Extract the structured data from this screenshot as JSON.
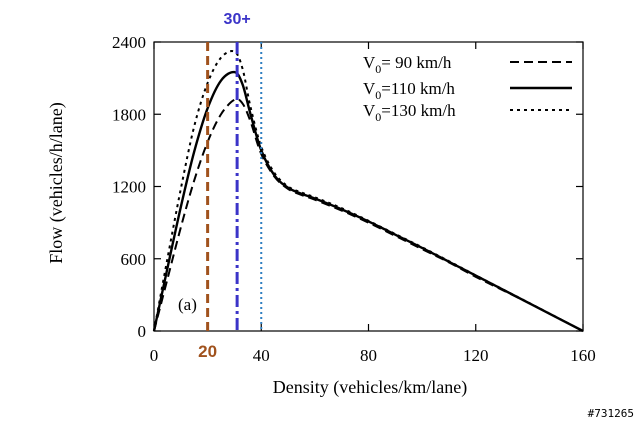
{
  "chart_data": {
    "type": "line",
    "xlabel": "Density (vehicles/km/lane)",
    "ylabel": "Flow (vehicles/h/lane)",
    "xlim": [
      0,
      160
    ],
    "ylim": [
      0,
      2400
    ],
    "xticks": [
      "0",
      "40",
      "80",
      "120",
      "160"
    ],
    "yticks": [
      "0",
      "600",
      "1200",
      "1800",
      "2400"
    ],
    "grid": false,
    "legend_position": "top-right",
    "panel_label": "(a)",
    "series": [
      {
        "name_main": "V",
        "name_sub": "0",
        "name_rest": "=  90 km/h",
        "style": "dashed",
        "x": [
          0,
          5,
          10,
          15,
          20,
          25,
          30,
          33,
          36,
          40,
          45,
          50,
          55,
          60,
          70,
          80,
          90,
          100,
          110,
          120,
          130,
          140,
          150,
          160
        ],
        "y": [
          0,
          430,
          860,
          1250,
          1570,
          1800,
          1920,
          1890,
          1740,
          1470,
          1280,
          1180,
          1130,
          1090,
          1000,
          900,
          790,
          680,
          570,
          450,
          340,
          230,
          115,
          0
        ]
      },
      {
        "name_main": "V",
        "name_sub": "0",
        "name_rest": "=110 km/h",
        "style": "solid",
        "x": [
          0,
          5,
          10,
          15,
          20,
          25,
          30,
          33,
          36,
          40,
          45,
          50,
          55,
          60,
          70,
          80,
          90,
          100,
          110,
          120,
          130,
          140,
          150,
          160
        ],
        "y": [
          0,
          520,
          1030,
          1490,
          1850,
          2080,
          2150,
          2050,
          1800,
          1500,
          1290,
          1190,
          1140,
          1100,
          1010,
          910,
          800,
          690,
          575,
          460,
          345,
          230,
          115,
          0
        ]
      },
      {
        "name_main": "V",
        "name_sub": "0",
        "name_rest": "=130 km/h",
        "style": "dotted",
        "x": [
          0,
          5,
          10,
          15,
          20,
          25,
          30,
          33,
          36,
          40,
          45,
          50,
          55,
          60,
          70,
          80,
          90,
          100,
          110,
          120,
          130,
          140,
          150,
          160
        ],
        "y": [
          0,
          600,
          1180,
          1700,
          2060,
          2270,
          2320,
          2180,
          1860,
          1530,
          1310,
          1200,
          1150,
          1110,
          1020,
          915,
          805,
          695,
          580,
          462,
          347,
          232,
          116,
          0
        ]
      }
    ],
    "reference_lines": [
      {
        "x": 20,
        "label": "20",
        "color": "#a0521d",
        "style": "dashed"
      },
      {
        "x": 31,
        "label": "30+",
        "color": "#3b34c8",
        "style": "dashdot"
      },
      {
        "x": 40,
        "label": "",
        "color": "#2f7fc1",
        "style": "dotted"
      }
    ]
  },
  "watermark": "#731265"
}
